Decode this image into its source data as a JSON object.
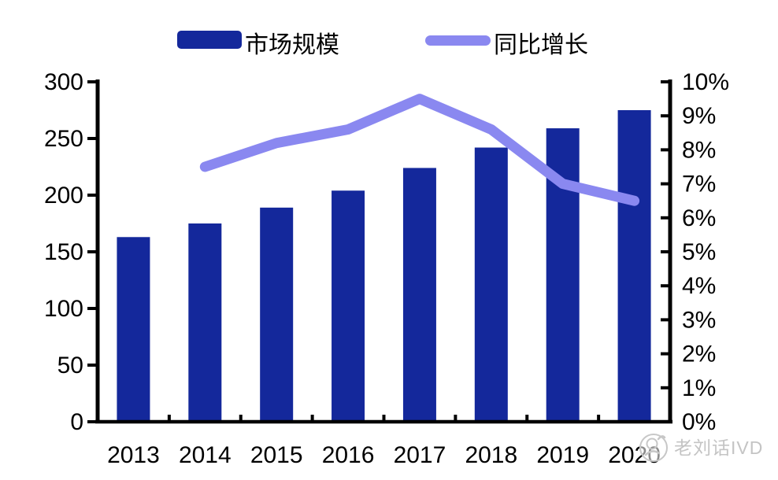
{
  "legend": {
    "bar_label": "市场规模",
    "line_label": "同比增长"
  },
  "watermark": {
    "text": "老刘话IVD"
  },
  "colors": {
    "bar": "#14289b",
    "line": "#8a88f0",
    "axis": "#000000",
    "text": "#000000",
    "watermark": "#c4c4c4"
  },
  "chart_data": {
    "type": "bar",
    "subtype": "bar-line-combo",
    "categories": [
      "2013",
      "2014",
      "2015",
      "2016",
      "2017",
      "2018",
      "2019",
      "2020"
    ],
    "series": [
      {
        "name": "市场规模",
        "type": "bar",
        "axis": "left",
        "values": [
          163,
          175,
          189,
          204,
          224,
          242,
          259,
          275
        ]
      },
      {
        "name": "同比增长",
        "type": "line",
        "axis": "right",
        "categories": [
          "2014",
          "2015",
          "2016",
          "2017",
          "2018",
          "2019",
          "2020"
        ],
        "values": [
          7.5,
          8.2,
          8.6,
          9.5,
          8.6,
          7.0,
          6.5
        ]
      }
    ],
    "left_axis": {
      "min": 0,
      "max": 300,
      "step": 50,
      "tick_labels": [
        "0",
        "50",
        "100",
        "150",
        "200",
        "250",
        "300"
      ]
    },
    "right_axis": {
      "min": 0,
      "max": 10,
      "step": 1,
      "tick_labels": [
        "0%",
        "1%",
        "2%",
        "3%",
        "4%",
        "5%",
        "6%",
        "7%",
        "8%",
        "9%",
        "10%"
      ]
    },
    "grid": false,
    "legend_position": "top"
  }
}
